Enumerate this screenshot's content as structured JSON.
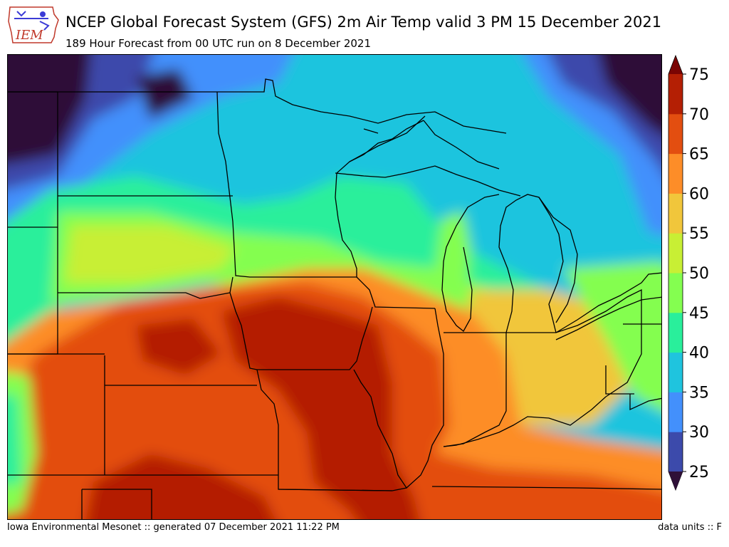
{
  "header": {
    "logo_text": "IEM",
    "title": "NCEP Global Forecast System (GFS) 2m Air Temp valid 3 PM 15 December 2021",
    "subtitle": "189 Hour Forecast from 00 UTC run on 8 December 2021"
  },
  "colorbar": {
    "ticks": [
      "25",
      "30",
      "35",
      "40",
      "45",
      "50",
      "55",
      "60",
      "65",
      "70",
      "75"
    ],
    "colors": [
      "#3c4aab",
      "#4390fc",
      "#1fc4de",
      "#29ef9b",
      "#84fe50",
      "#c8ef34",
      "#f1c63b",
      "#fd8d28",
      "#e34e10",
      "#b41f04"
    ],
    "under_color": "#2f1038",
    "over_color": "#7a0403"
  },
  "footer": {
    "left": "Iowa Environmental Mesonet :: generated 07 December 2021 11:22 PM",
    "right": "data units :: F"
  }
}
